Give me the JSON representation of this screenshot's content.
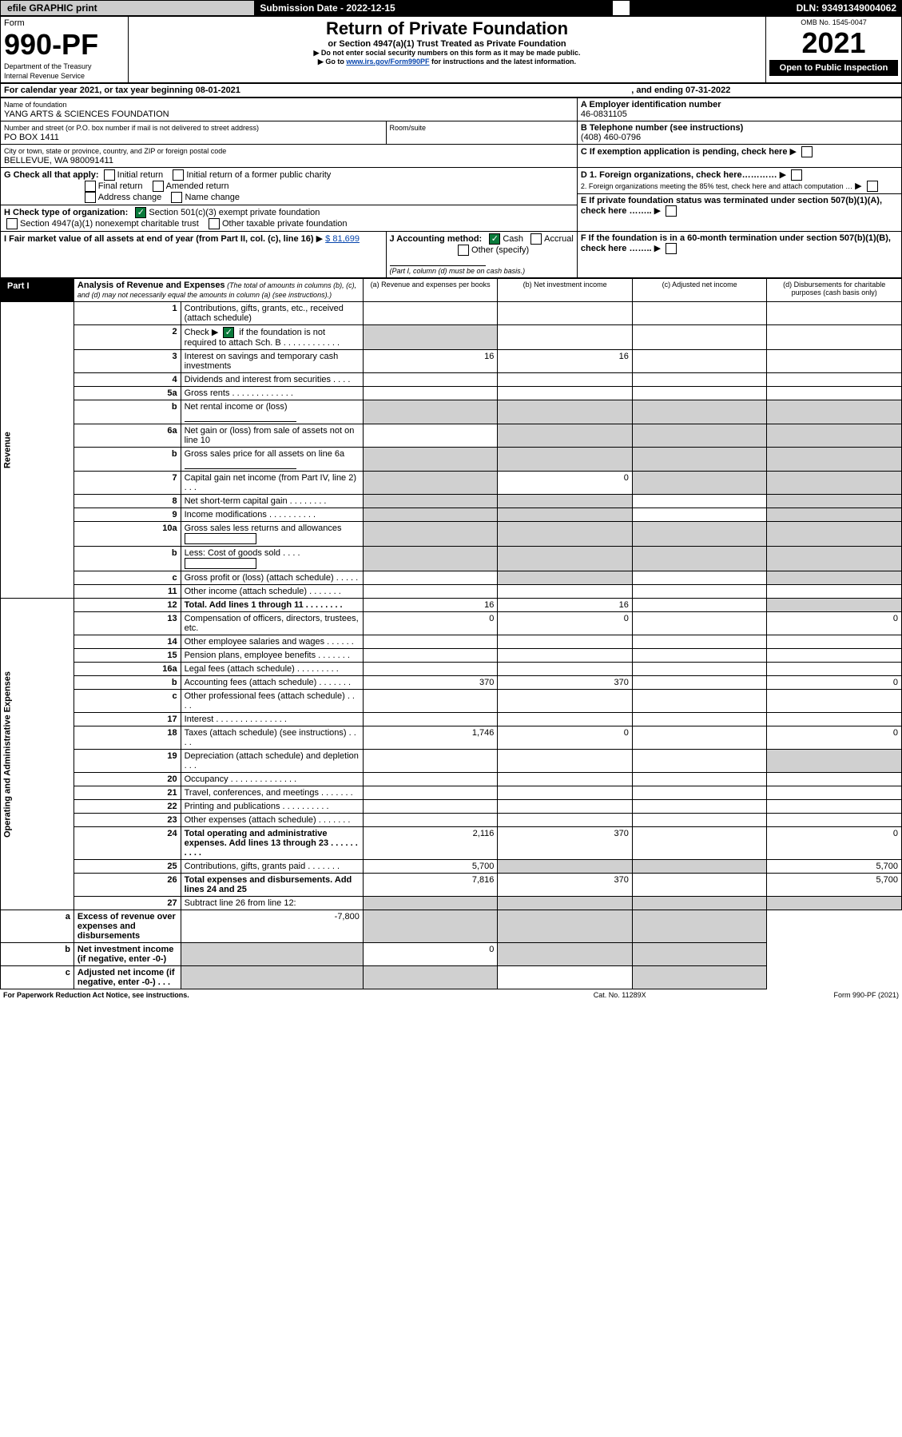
{
  "topbar": {
    "efile": "efile GRAPHIC print",
    "subdate_label": "Submission Date - 2022-12-15",
    "dln": "DLN: 93491349004062"
  },
  "header": {
    "form_word": "Form",
    "form_no": "990-PF",
    "dept": "Department of the Treasury",
    "irs": "Internal Revenue Service",
    "title": "Return of Private Foundation",
    "subtitle": "or Section 4947(a)(1) Trust Treated as Private Foundation",
    "note1": "▶ Do not enter social security numbers on this form as it may be made public.",
    "note2": "▶ Go to ",
    "link": "www.irs.gov/Form990PF",
    "note3": " for instructions and the latest information.",
    "omb": "OMB No. 1545-0047",
    "year": "2021",
    "open": "Open to Public Inspection"
  },
  "cal": {
    "line": "For calendar year 2021, or tax year beginning 08-01-2021",
    "end": ", and ending 07-31-2022"
  },
  "id": {
    "name_label": "Name of foundation",
    "name": "YANG ARTS & SCIENCES FOUNDATION",
    "addr_label": "Number and street (or P.O. box number if mail is not delivered to street address)",
    "addr": "PO BOX 1411",
    "room_label": "Room/suite",
    "city_label": "City or town, state or province, country, and ZIP or foreign postal code",
    "city": "BELLEVUE, WA  980091411",
    "A_label": "A Employer identification number",
    "A": "46-0831105",
    "B_label": "B Telephone number (see instructions)",
    "B": "(408) 460-0796",
    "C": "C If exemption application is pending, check here",
    "D1": "D 1. Foreign organizations, check here…………",
    "D2": "2. Foreign organizations meeting the 85% test, check here and attach computation …",
    "E": "E  If private foundation status was terminated under section 507(b)(1)(A), check here ……..",
    "F": "F  If the foundation is in a 60-month termination under section 507(b)(1)(B), check here ……..",
    "G": "G Check all that apply:",
    "G_opts": [
      "Initial return",
      "Initial return of a former public charity",
      "Final return",
      "Amended return",
      "Address change",
      "Name change"
    ],
    "H": "H Check type of organization:",
    "H1": "Section 501(c)(3) exempt private foundation",
    "H2": "Section 4947(a)(1) nonexempt charitable trust",
    "H3": "Other taxable private foundation",
    "I": "I Fair market value of all assets at end of year (from Part II, col. (c), line 16)",
    "I_val": "$  81,699",
    "J": "J Accounting method:",
    "J1": "Cash",
    "J2": "Accrual",
    "J3": "Other (specify)",
    "J_note": "(Part I, column (d) must be on cash basis.)"
  },
  "part1": {
    "label": "Part I",
    "title": "Analysis of Revenue and Expenses",
    "title_note": " (The total of amounts in columns (b), (c), and (d) may not necessarily equal the amounts in column (a) (see instructions).)",
    "cols": {
      "a": "(a)  Revenue and expenses per books",
      "b": "(b)  Net investment income",
      "c": "(c)  Adjusted net income",
      "d": "(d)  Disbursements for charitable purposes (cash basis only)"
    }
  },
  "sections": {
    "rev": "Revenue",
    "exp": "Operating and Administrative Expenses"
  },
  "rows": [
    {
      "n": "1",
      "t": "Contributions, gifts, grants, etc., received (attach schedule)"
    },
    {
      "n": "2",
      "t": "Check ▶",
      "t2": " if the foundation is not required to attach Sch. B",
      "chk": true,
      "dots": true,
      "gray_a": true
    },
    {
      "n": "3",
      "t": "Interest on savings and temporary cash investments",
      "a": "16",
      "b": "16"
    },
    {
      "n": "4",
      "t": "Dividends and interest from securities   .   .   .   ."
    },
    {
      "n": "5a",
      "t": "Gross rents   .   .   .   .   .   .   .   .   .   .   .   .   ."
    },
    {
      "n": "b",
      "t": "Net rental income or (loss)",
      "underline": true,
      "gray_a": true,
      "gray_b": true,
      "gray_c": true,
      "gray_d": true
    },
    {
      "n": "6a",
      "t": "Net gain or (loss) from sale of assets not on line 10",
      "gray_b": true,
      "gray_c": true,
      "gray_d": true
    },
    {
      "n": "b",
      "t": "Gross sales price for all assets on line 6a",
      "underline": true,
      "gray_a": true,
      "gray_b": true,
      "gray_c": true,
      "gray_d": true
    },
    {
      "n": "7",
      "t": "Capital gain net income (from Part IV, line 2)   .   .   .",
      "gray_a": true,
      "b": "0",
      "gray_c": true,
      "gray_d": true
    },
    {
      "n": "8",
      "t": "Net short-term capital gain   .   .   .   .   .   .   .   .",
      "gray_a": true,
      "gray_b": true,
      "gray_d": true
    },
    {
      "n": "9",
      "t": "Income modifications   .   .   .   .   .   .   .   .   .   .",
      "gray_a": true,
      "gray_b": true,
      "gray_d": true
    },
    {
      "n": "10a",
      "t": "Gross sales less returns and allowances",
      "box": true,
      "gray_a": true,
      "gray_b": true,
      "gray_c": true,
      "gray_d": true
    },
    {
      "n": "b",
      "t": "Less: Cost of goods sold   .   .   .   .",
      "box": true,
      "gray_a": true,
      "gray_b": true,
      "gray_c": true,
      "gray_d": true
    },
    {
      "n": "c",
      "t": "Gross profit or (loss) (attach schedule)   .   .   .   .   .",
      "gray_b": true,
      "gray_d": true
    },
    {
      "n": "11",
      "t": "Other income (attach schedule)   .   .   .   .   .   .   ."
    },
    {
      "n": "12",
      "t": "Total. Add lines 1 through 11   .   .   .   .   .   .   .   .",
      "bold": true,
      "a": "16",
      "b": "16",
      "gray_d": true
    },
    {
      "n": "13",
      "t": "Compensation of officers, directors, trustees, etc.",
      "a": "0",
      "b": "0",
      "d": "0"
    },
    {
      "n": "14",
      "t": "Other employee salaries and wages   .   .   .   .   .   ."
    },
    {
      "n": "15",
      "t": "Pension plans, employee benefits   .   .   .   .   .   .   ."
    },
    {
      "n": "16a",
      "t": "Legal fees (attach schedule)   .   .   .   .   .   .   .   .   ."
    },
    {
      "n": "b",
      "t": "Accounting fees (attach schedule)   .   .   .   .   .   .   .",
      "a": "370",
      "b": "370",
      "d": "0"
    },
    {
      "n": "c",
      "t": "Other professional fees (attach schedule)   .   .   .   ."
    },
    {
      "n": "17",
      "t": "Interest   .   .   .   .   .   .   .   .   .   .   .   .   .   .   ."
    },
    {
      "n": "18",
      "t": "Taxes (attach schedule) (see instructions)   .   .   .   .",
      "a": "1,746",
      "b": "0",
      "d": "0"
    },
    {
      "n": "19",
      "t": "Depreciation (attach schedule) and depletion   .   .   .",
      "gray_d": true
    },
    {
      "n": "20",
      "t": "Occupancy   .   .   .   .   .   .   .   .   .   .   .   .   .   ."
    },
    {
      "n": "21",
      "t": "Travel, conferences, and meetings   .   .   .   .   .   .   ."
    },
    {
      "n": "22",
      "t": "Printing and publications   .   .   .   .   .   .   .   .   .   ."
    },
    {
      "n": "23",
      "t": "Other expenses (attach schedule)   .   .   .   .   .   .   ."
    },
    {
      "n": "24",
      "t": "Total operating and administrative expenses. Add lines 13 through 23   .   .   .   .   .   .   .   .   .   .",
      "bold": true,
      "a": "2,116",
      "b": "370",
      "d": "0"
    },
    {
      "n": "25",
      "t": "Contributions, gifts, grants paid   .   .   .   .   .   .   .",
      "a": "5,700",
      "gray_b": true,
      "gray_c": true,
      "d": "5,700"
    },
    {
      "n": "26",
      "t": "Total expenses and disbursements. Add lines 24 and 25",
      "bold": true,
      "a": "7,816",
      "b": "370",
      "d": "5,700"
    },
    {
      "n": "27",
      "t": "Subtract line 26 from line 12:",
      "gray_a": true,
      "gray_b": true,
      "gray_c": true,
      "gray_d": true
    },
    {
      "n": "a",
      "t": "Excess of revenue over expenses and disbursements",
      "bold": true,
      "a": "-7,800",
      "gray_b": true,
      "gray_c": true,
      "gray_d": true
    },
    {
      "n": "b",
      "t": "Net investment income (if negative, enter -0-)",
      "bold": true,
      "gray_a": true,
      "b": "0",
      "gray_c": true,
      "gray_d": true
    },
    {
      "n": "c",
      "t": "Adjusted net income (if negative, enter -0-)   .   .   .",
      "bold": true,
      "gray_a": true,
      "gray_b": true,
      "gray_d": true
    }
  ],
  "footer": {
    "left": "For Paperwork Reduction Act Notice, see instructions.",
    "mid": "Cat. No. 11289X",
    "right": "Form 990-PF (2021)"
  }
}
